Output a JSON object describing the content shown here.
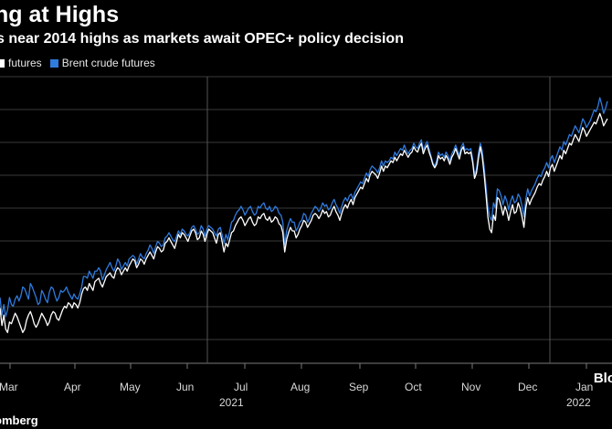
{
  "title": "ng at Highs",
  "subtitle": "s near 2014 highs as markets await OPEC+ policy decision",
  "source": "omberg",
  "watermark": "Blo",
  "legend": [
    {
      "label": "futures",
      "color": "#ffffff"
    },
    {
      "label": "Brent crude futures",
      "color": "#2f7bde"
    }
  ],
  "chart_data": {
    "type": "line",
    "x_tick_labels": [
      "Mar",
      "Apr",
      "May",
      "Jun",
      "Jul",
      "Aug",
      "Sep",
      "Oct",
      "Nov",
      "Dec",
      "Jan"
    ],
    "year_labels": [
      "2021",
      "2022"
    ],
    "grid": true,
    "series": [
      {
        "name": "Brent crude futures",
        "color": "#2f7bde",
        "values": [
          0.74,
          0.64,
          0.7,
          0.63,
          0.67,
          0.74,
          0.7,
          0.69,
          0.73,
          0.75,
          0.72,
          0.75,
          0.8,
          0.79,
          0.76,
          0.73,
          0.82,
          0.8,
          0.77,
          0.74,
          0.7,
          0.71,
          0.78,
          0.76,
          0.73,
          0.71,
          0.77,
          0.8,
          0.79,
          0.75,
          0.72,
          0.74,
          0.78,
          0.77,
          0.78,
          0.8,
          0.77,
          0.75,
          0.73,
          0.76,
          0.74,
          0.73,
          0.76,
          0.8,
          0.86,
          0.86,
          0.85,
          0.89,
          0.87,
          0.85,
          0.89,
          0.89,
          0.91,
          0.89,
          0.84,
          0.87,
          0.9,
          0.92,
          0.94,
          0.91,
          0.89,
          0.92,
          0.96,
          0.94,
          0.9,
          0.92,
          0.94,
          0.92,
          0.96,
          0.97,
          0.98,
          0.97,
          0.93,
          0.96,
          0.99,
          0.97,
          0.96,
          0.99,
          1.01,
          1.04,
          1.02,
          0.99,
          1.03,
          1.06,
          1.05,
          1.03,
          1.04,
          1.08,
          1.09,
          1.11,
          1.09,
          1.07,
          1.06,
          1.09,
          1.12,
          1.1,
          1.13,
          1.12,
          1.1,
          1.09,
          1.11,
          1.14,
          1.15,
          1.13,
          1.1,
          1.11,
          1.15,
          1.13,
          1.09,
          1.13,
          1.15,
          1.14,
          1.13,
          1.11,
          1.09,
          1.13,
          1.14,
          1.1,
          1.05,
          1.1,
          1.07,
          1.12,
          1.17,
          1.18,
          1.21,
          1.23,
          1.24,
          1.26,
          1.24,
          1.21,
          1.23,
          1.25,
          1.26,
          1.23,
          1.21,
          1.22,
          1.26,
          1.25,
          1.27,
          1.28,
          1.25,
          1.24,
          1.26,
          1.23,
          1.24,
          1.26,
          1.25,
          1.22,
          1.21,
          1.17,
          1.04,
          1.12,
          1.16,
          1.19,
          1.17,
          1.17,
          1.12,
          1.14,
          1.17,
          1.18,
          1.22,
          1.21,
          1.17,
          1.19,
          1.22,
          1.24,
          1.26,
          1.25,
          1.23,
          1.25,
          1.28,
          1.26,
          1.27,
          1.24,
          1.25,
          1.28,
          1.3,
          1.27,
          1.25,
          1.22,
          1.26,
          1.29,
          1.31,
          1.29,
          1.32,
          1.33,
          1.3,
          1.34,
          1.36,
          1.38,
          1.4,
          1.39,
          1.42,
          1.45,
          1.43,
          1.47,
          1.49,
          1.48,
          1.47,
          1.45,
          1.48,
          1.52,
          1.49,
          1.52,
          1.51,
          1.52,
          1.54,
          1.53,
          1.57,
          1.55,
          1.57,
          1.59,
          1.58,
          1.61,
          1.58,
          1.56,
          1.58,
          1.59,
          1.62,
          1.6,
          1.59,
          1.62,
          1.64,
          1.58,
          1.61,
          1.63,
          1.59,
          1.55,
          1.51,
          1.49,
          1.52,
          1.57,
          1.55,
          1.56,
          1.54,
          1.57,
          1.55,
          1.52,
          1.56,
          1.58,
          1.61,
          1.58,
          1.55,
          1.6,
          1.62,
          1.58,
          1.59,
          1.58,
          1.59,
          1.53,
          1.44,
          1.47,
          1.56,
          1.62,
          1.58,
          1.49,
          1.38,
          1.26,
          1.2,
          1.18,
          1.28,
          1.25,
          1.36,
          1.35,
          1.32,
          1.27,
          1.32,
          1.29,
          1.24,
          1.29,
          1.32,
          1.28,
          1.29,
          1.33,
          1.31,
          1.26,
          1.2,
          1.3,
          1.36,
          1.32,
          1.35,
          1.37,
          1.39,
          1.42,
          1.44,
          1.43,
          1.46,
          1.48,
          1.51,
          1.48,
          1.53,
          1.55,
          1.51,
          1.54,
          1.57,
          1.6,
          1.58,
          1.63,
          1.61,
          1.64,
          1.67,
          1.66,
          1.69,
          1.72,
          1.7,
          1.68,
          1.72,
          1.76,
          1.74,
          1.71,
          1.73,
          1.75,
          1.78,
          1.81,
          1.8,
          1.83,
          1.88,
          1.84,
          1.79,
          1.82,
          1.86
        ]
      },
      {
        "name": "futures",
        "color": "#ffffff",
        "values": [
          0.68,
          0.58,
          0.64,
          0.56,
          0.54,
          0.6,
          0.59,
          0.62,
          0.65,
          0.63,
          0.6,
          0.57,
          0.54,
          0.56,
          0.61,
          0.64,
          0.66,
          0.63,
          0.59,
          0.57,
          0.59,
          0.62,
          0.65,
          0.63,
          0.61,
          0.58,
          0.6,
          0.64,
          0.66,
          0.65,
          0.62,
          0.61,
          0.64,
          0.67,
          0.69,
          0.68,
          0.71,
          0.7,
          0.68,
          0.71,
          0.7,
          0.68,
          0.71,
          0.76,
          0.79,
          0.8,
          0.78,
          0.82,
          0.8,
          0.78,
          0.83,
          0.84,
          0.85,
          0.82,
          0.8,
          0.83,
          0.86,
          0.87,
          0.88,
          0.86,
          0.85,
          0.89,
          0.91,
          0.9,
          0.87,
          0.89,
          0.91,
          0.89,
          0.92,
          0.94,
          0.96,
          0.95,
          0.91,
          0.93,
          0.96,
          0.95,
          0.93,
          0.96,
          0.98,
          1.0,
          0.98,
          0.96,
          1.0,
          1.03,
          1.02,
          1.0,
          1.01,
          1.05,
          1.06,
          1.08,
          1.06,
          1.04,
          1.02,
          1.06,
          1.1,
          1.08,
          1.11,
          1.1,
          1.08,
          1.06,
          1.09,
          1.12,
          1.13,
          1.11,
          1.07,
          1.08,
          1.12,
          1.1,
          1.06,
          1.1,
          1.13,
          1.12,
          1.11,
          1.08,
          1.05,
          1.1,
          1.11,
          1.06,
          1.0,
          1.05,
          1.03,
          1.07,
          1.11,
          1.12,
          1.15,
          1.17,
          1.19,
          1.2,
          1.18,
          1.15,
          1.17,
          1.19,
          1.2,
          1.17,
          1.15,
          1.16,
          1.2,
          1.19,
          1.21,
          1.22,
          1.19,
          1.18,
          1.2,
          1.17,
          1.18,
          1.2,
          1.19,
          1.16,
          1.15,
          1.11,
          1.0,
          1.07,
          1.11,
          1.14,
          1.12,
          1.12,
          1.08,
          1.1,
          1.13,
          1.15,
          1.18,
          1.17,
          1.14,
          1.16,
          1.18,
          1.21,
          1.22,
          1.21,
          1.19,
          1.21,
          1.24,
          1.22,
          1.23,
          1.2,
          1.21,
          1.24,
          1.26,
          1.23,
          1.21,
          1.18,
          1.22,
          1.25,
          1.27,
          1.25,
          1.28,
          1.3,
          1.27,
          1.31,
          1.33,
          1.35,
          1.37,
          1.36,
          1.39,
          1.42,
          1.4,
          1.44,
          1.46,
          1.45,
          1.44,
          1.42,
          1.45,
          1.49,
          1.46,
          1.49,
          1.48,
          1.5,
          1.52,
          1.51,
          1.54,
          1.52,
          1.54,
          1.56,
          1.55,
          1.58,
          1.56,
          1.54,
          1.56,
          1.57,
          1.6,
          1.58,
          1.57,
          1.6,
          1.62,
          1.56,
          1.59,
          1.61,
          1.57,
          1.54,
          1.5,
          1.48,
          1.5,
          1.55,
          1.53,
          1.54,
          1.52,
          1.55,
          1.53,
          1.5,
          1.54,
          1.56,
          1.59,
          1.56,
          1.53,
          1.58,
          1.6,
          1.56,
          1.57,
          1.56,
          1.57,
          1.51,
          1.42,
          1.45,
          1.53,
          1.6,
          1.55,
          1.45,
          1.33,
          1.2,
          1.13,
          1.11,
          1.21,
          1.18,
          1.31,
          1.3,
          1.26,
          1.21,
          1.26,
          1.23,
          1.18,
          1.23,
          1.27,
          1.22,
          1.23,
          1.28,
          1.25,
          1.2,
          1.14,
          1.25,
          1.31,
          1.27,
          1.3,
          1.32,
          1.34,
          1.37,
          1.39,
          1.38,
          1.41,
          1.43,
          1.46,
          1.43,
          1.48,
          1.5,
          1.46,
          1.49,
          1.52,
          1.55,
          1.53,
          1.58,
          1.56,
          1.59,
          1.62,
          1.61,
          1.64,
          1.67,
          1.65,
          1.63,
          1.67,
          1.71,
          1.69,
          1.66,
          1.68,
          1.7,
          1.72,
          1.74,
          1.73,
          1.76,
          1.79,
          1.76,
          1.72,
          1.74,
          1.76
        ]
      }
    ]
  }
}
